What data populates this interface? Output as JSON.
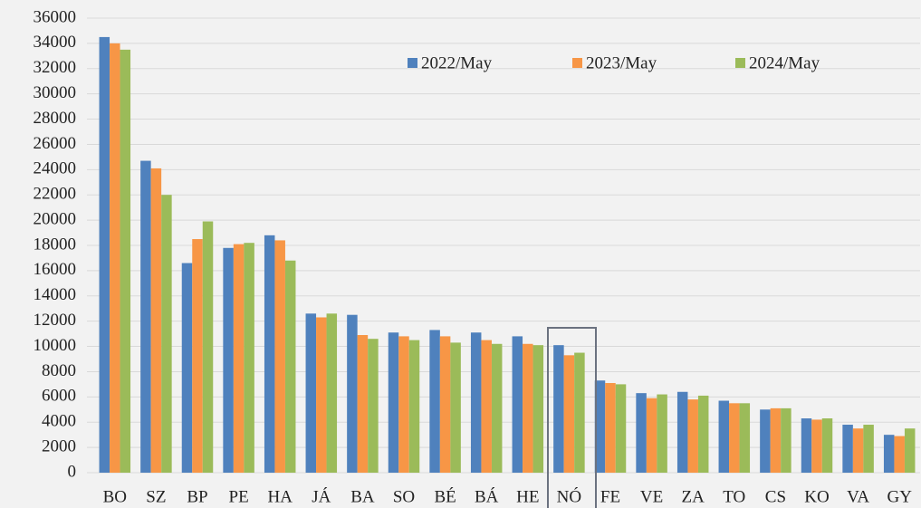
{
  "chart_data": {
    "type": "bar",
    "categories": [
      "BO",
      "SZ",
      "BP",
      "PE",
      "HA",
      "JÁ",
      "BA",
      "SO",
      "BÉ",
      "BÁ",
      "HE",
      "NÓ",
      "FE",
      "VE",
      "ZA",
      "TO",
      "CS",
      "KO",
      "VA",
      "GY"
    ],
    "series": [
      {
        "name": "2022/May",
        "color": "#4f81bd",
        "values": [
          34500,
          24700,
          16600,
          17800,
          18800,
          12600,
          12500,
          11100,
          11300,
          11100,
          10800,
          10100,
          7300,
          6300,
          6400,
          5700,
          5000,
          4300,
          3800,
          3000
        ]
      },
      {
        "name": "2023/May",
        "color": "#f79646",
        "values": [
          34000,
          24100,
          18500,
          18100,
          18400,
          12300,
          10900,
          10800,
          10800,
          10500,
          10200,
          9300,
          7100,
          5900,
          5800,
          5500,
          5100,
          4200,
          3500,
          2900
        ]
      },
      {
        "name": "2024/May",
        "color": "#9bbb59",
        "values": [
          33500,
          22000,
          19900,
          18200,
          16800,
          12600,
          10600,
          10500,
          10300,
          10200,
          10100,
          9500,
          7000,
          6200,
          6100,
          5500,
          5100,
          4300,
          3800,
          3500
        ]
      }
    ],
    "ylim": [
      0,
      36000
    ],
    "yticks": [
      0,
      2000,
      4000,
      6000,
      8000,
      10000,
      12000,
      14000,
      16000,
      18000,
      20000,
      22000,
      24000,
      26000,
      28000,
      30000,
      32000,
      34000,
      36000
    ],
    "grid": true
  }
}
